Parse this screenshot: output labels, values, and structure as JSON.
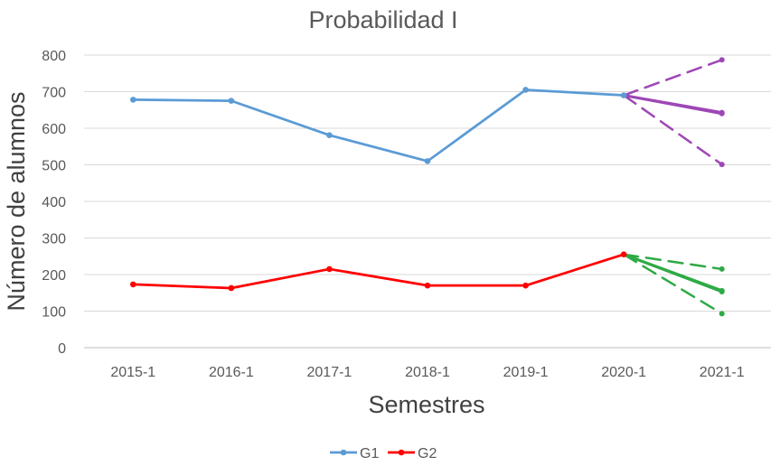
{
  "chart_data": {
    "type": "line",
    "title": "Probabilidad I",
    "xlabel": "Semestres",
    "ylabel": "Número de alumnos",
    "categories": [
      "2015-1",
      "2016-1",
      "2017-1",
      "2018-1",
      "2019-1",
      "2020-1",
      "2021-1"
    ],
    "ylim": [
      0,
      800
    ],
    "yticks": [
      0,
      100,
      200,
      300,
      400,
      500,
      600,
      700,
      800
    ],
    "grid": true,
    "legend_position": "bottom",
    "series": [
      {
        "name": "G1",
        "color": "#5B9BD5",
        "values": [
          678,
          675,
          581,
          510,
          705,
          690,
          null
        ]
      },
      {
        "name": "G2",
        "color": "#FF0000",
        "values": [
          173,
          163,
          215,
          170,
          170,
          255,
          null
        ]
      }
    ],
    "projections": [
      {
        "color": "#9E47B6",
        "dashed": false,
        "from": [
          "2020-1",
          690
        ],
        "to": [
          "2021-1",
          643
        ]
      },
      {
        "color": "#9E47B6",
        "dashed": false,
        "from": [
          "2020-1",
          690
        ],
        "to": [
          "2021-1",
          640
        ]
      },
      {
        "color": "#9E47B6",
        "dashed": true,
        "from": [
          "2020-1",
          690
        ],
        "to": [
          "2021-1",
          787
        ]
      },
      {
        "color": "#9E47B6",
        "dashed": true,
        "from": [
          "2020-1",
          690
        ],
        "to": [
          "2021-1",
          501
        ]
      },
      {
        "color": "#2EAA46",
        "dashed": false,
        "from": [
          "2020-1",
          255
        ],
        "to": [
          "2021-1",
          156
        ]
      },
      {
        "color": "#2EAA46",
        "dashed": false,
        "from": [
          "2020-1",
          255
        ],
        "to": [
          "2021-1",
          153
        ]
      },
      {
        "color": "#2EAA46",
        "dashed": true,
        "from": [
          "2020-1",
          255
        ],
        "to": [
          "2021-1",
          215
        ]
      },
      {
        "color": "#2EAA46",
        "dashed": true,
        "from": [
          "2020-1",
          255
        ],
        "to": [
          "2021-1",
          93
        ]
      }
    ]
  }
}
